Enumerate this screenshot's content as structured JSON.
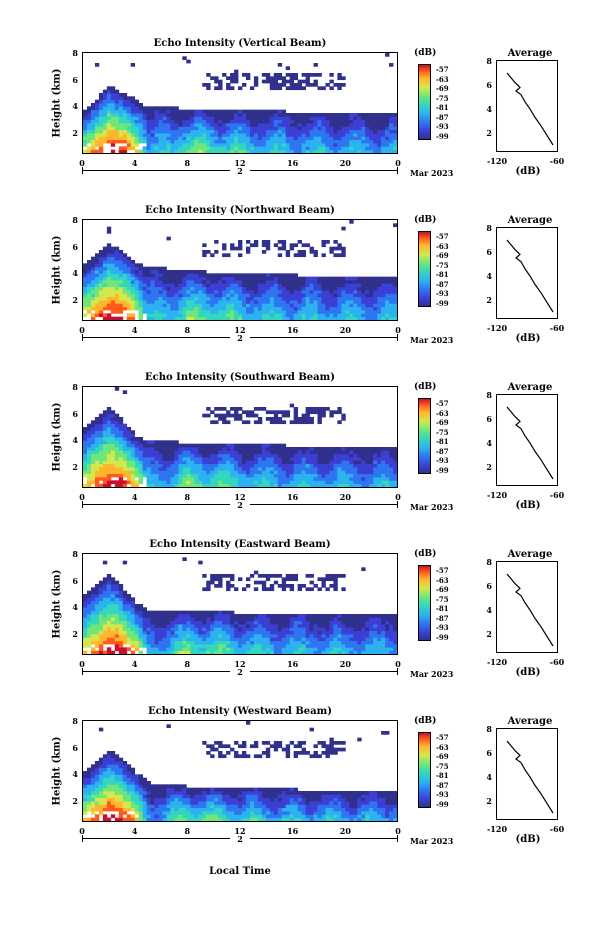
{
  "panels": [
    {
      "title": "Echo Intensity (Vertical Beam)"
    },
    {
      "title": "Echo Intensity (Northward Beam)"
    },
    {
      "title": "Echo Intensity (Southward Beam)"
    },
    {
      "title": "Echo Intensity (Eastward Beam)"
    },
    {
      "title": "Echo Intensity (Westward Beam)"
    }
  ],
  "axes": {
    "ylabel": "Height (km)",
    "yticks": [
      "8",
      "6",
      "4",
      "2"
    ],
    "xticks": [
      "0",
      "4",
      "8",
      "12",
      "16",
      "20",
      "0"
    ],
    "day": "2",
    "month": "Mar 2023",
    "xlabel": "Local Time"
  },
  "colorbar": {
    "unit": "(dB)",
    "ticks": [
      "-57",
      "-63",
      "-69",
      "-75",
      "-81",
      "-87",
      "-93",
      "-99"
    ],
    "colors": [
      "#30318c",
      "#3b3fd4",
      "#2e75f0",
      "#2cb2f0",
      "#34d6c0",
      "#6fe67a",
      "#d5e84b",
      "#ffb52e",
      "#ff5a1c",
      "#c8102e"
    ]
  },
  "profile": {
    "title": "Average",
    "yticks": [
      "8",
      "6",
      "4",
      "2"
    ],
    "xticks": [
      "-120",
      "-60"
    ],
    "xlabel": "(dB)"
  },
  "chart_data": [
    {
      "type": "heatmap",
      "title": "Echo Intensity (Vertical Beam)",
      "ylabel": "Height (km)",
      "xlabel": "Local Time",
      "xlim": [
        0,
        24
      ],
      "ylim": [
        0.5,
        8
      ],
      "zlim": [
        -99,
        -57
      ],
      "zunit": "dB",
      "top_height_km": [
        3.5,
        5.6,
        5.0,
        4.6,
        3.9,
        4.0,
        3.8,
        3.7,
        3.7,
        3.7,
        3.6,
        3.5,
        3.4
      ],
      "max_intensity_db": [
        -70,
        -57,
        -58,
        -66,
        -84,
        -84,
        -75,
        -77,
        -80,
        -82,
        -83,
        -83,
        -84
      ],
      "x_hours": [
        0,
        2,
        3,
        4,
        5,
        6,
        8,
        10,
        12,
        14,
        16,
        18,
        22
      ]
    },
    {
      "type": "line",
      "title": "Average",
      "xlabel": "(dB)",
      "ylabel": "Height (km)",
      "xlim": [
        -120,
        -60
      ],
      "ylim": [
        0.5,
        8
      ],
      "x": [
        -64,
        -70,
        -76,
        -82,
        -87,
        -92,
        -96,
        -101,
        -97,
        -102,
        -106,
        -110
      ],
      "y": [
        1.0,
        1.8,
        2.6,
        3.3,
        4.0,
        4.6,
        5.2,
        5.5,
        5.8,
        6.2,
        6.6,
        7.0
      ]
    },
    {
      "type": "heatmap",
      "title": "Echo Intensity (Northward Beam)",
      "ylabel": "Height (km)",
      "xlabel": "Local Time",
      "xlim": [
        0,
        24
      ],
      "ylim": [
        0.5,
        8
      ],
      "zlim": [
        -99,
        -57
      ],
      "zunit": "dB",
      "top_height_km": [
        4.5,
        6.2,
        5.8,
        4.8,
        4.4,
        4.4,
        4.2,
        4.1,
        4.0,
        4.0,
        3.9,
        3.8,
        3.7
      ],
      "max_intensity_db": [
        -68,
        -57,
        -58,
        -66,
        -84,
        -83,
        -75,
        -77,
        -80,
        -82,
        -83,
        -83,
        -84
      ],
      "x_hours": [
        0,
        2,
        3,
        4,
        5,
        6,
        8,
        10,
        12,
        14,
        16,
        18,
        22
      ]
    },
    {
      "type": "line",
      "title": "Average",
      "xlabel": "(dB)",
      "ylabel": "Height (km)",
      "xlim": [
        -120,
        -60
      ],
      "ylim": [
        0.5,
        8
      ],
      "x": [
        -64,
        -70,
        -76,
        -82,
        -87,
        -92,
        -96,
        -101,
        -97,
        -102,
        -106,
        -110
      ],
      "y": [
        1.0,
        1.8,
        2.6,
        3.3,
        4.0,
        4.6,
        5.2,
        5.5,
        5.8,
        6.2,
        6.6,
        7.0
      ]
    },
    {
      "type": "heatmap",
      "title": "Echo Intensity (Southward Beam)",
      "ylabel": "Height (km)",
      "xlabel": "Local Time",
      "xlim": [
        0,
        24
      ],
      "ylim": [
        0.5,
        8
      ],
      "zlim": [
        -99,
        -57
      ],
      "zunit": "dB",
      "top_height_km": [
        4.8,
        6.4,
        5.6,
        4.4,
        3.9,
        4.0,
        3.8,
        3.7,
        3.7,
        3.7,
        3.6,
        3.5,
        3.4
      ],
      "max_intensity_db": [
        -68,
        -57,
        -58,
        -66,
        -84,
        -84,
        -75,
        -77,
        -80,
        -82,
        -83,
        -83,
        -84
      ],
      "x_hours": [
        0,
        2,
        3,
        4,
        5,
        6,
        8,
        10,
        12,
        14,
        16,
        18,
        22
      ]
    },
    {
      "type": "line",
      "title": "Average",
      "xlabel": "(dB)",
      "ylabel": "Height (km)",
      "xlim": [
        -120,
        -60
      ],
      "ylim": [
        0.5,
        8
      ],
      "x": [
        -64,
        -70,
        -76,
        -82,
        -87,
        -92,
        -96,
        -101,
        -97,
        -102,
        -106,
        -110
      ],
      "y": [
        1.0,
        1.8,
        2.6,
        3.3,
        4.0,
        4.6,
        5.2,
        5.5,
        5.8,
        6.2,
        6.6,
        7.0
      ]
    },
    {
      "type": "heatmap",
      "title": "Echo Intensity (Eastward Beam)",
      "ylabel": "Height (km)",
      "xlabel": "Local Time",
      "xlim": [
        0,
        24
      ],
      "ylim": [
        0.5,
        8
      ],
      "zlim": [
        -99,
        -57
      ],
      "zunit": "dB",
      "top_height_km": [
        4.8,
        6.5,
        5.6,
        4.4,
        3.8,
        3.8,
        3.7,
        3.7,
        3.6,
        3.6,
        3.6,
        3.5,
        3.4
      ],
      "max_intensity_db": [
        -68,
        -57,
        -58,
        -66,
        -84,
        -84,
        -75,
        -77,
        -80,
        -82,
        -83,
        -83,
        -84
      ],
      "x_hours": [
        0,
        2,
        3,
        4,
        5,
        6,
        8,
        10,
        12,
        14,
        16,
        18,
        22
      ]
    },
    {
      "type": "line",
      "title": "Average",
      "xlabel": "(dB)",
      "ylabel": "Height (km)",
      "xlim": [
        -120,
        -60
      ],
      "ylim": [
        0.5,
        8
      ],
      "x": [
        -64,
        -70,
        -76,
        -82,
        -87,
        -92,
        -96,
        -101,
        -97,
        -102,
        -106,
        -110
      ],
      "y": [
        1.0,
        1.8,
        2.6,
        3.3,
        4.0,
        4.6,
        5.2,
        5.5,
        5.8,
        6.2,
        6.6,
        7.0
      ]
    },
    {
      "type": "heatmap",
      "title": "Echo Intensity (Westward Beam)",
      "ylabel": "Height (km)",
      "xlabel": "Local Time",
      "xlim": [
        0,
        24
      ],
      "ylim": [
        0.5,
        8
      ],
      "zlim": [
        -99,
        -57
      ],
      "zunit": "dB",
      "top_height_km": [
        4.0,
        5.8,
        5.2,
        4.2,
        3.4,
        3.3,
        3.1,
        3.0,
        3.0,
        3.0,
        2.9,
        2.8,
        2.7
      ],
      "max_intensity_db": [
        -68,
        -57,
        -58,
        -66,
        -84,
        -84,
        -75,
        -77,
        -80,
        -82,
        -83,
        -83,
        -84
      ],
      "x_hours": [
        0,
        2,
        3,
        4,
        5,
        6,
        8,
        10,
        12,
        14,
        16,
        18,
        22
      ]
    },
    {
      "type": "line",
      "title": "Average",
      "xlabel": "(dB)",
      "ylabel": "Height (km)",
      "xlim": [
        -120,
        -60
      ],
      "ylim": [
        0.5,
        8
      ],
      "x": [
        -64,
        -70,
        -76,
        -82,
        -87,
        -92,
        -96,
        -101,
        -97,
        -102,
        -106,
        -110
      ],
      "y": [
        1.0,
        1.8,
        2.6,
        3.3,
        4.0,
        4.6,
        5.2,
        5.5,
        5.8,
        6.2,
        6.6,
        7.0
      ]
    }
  ]
}
